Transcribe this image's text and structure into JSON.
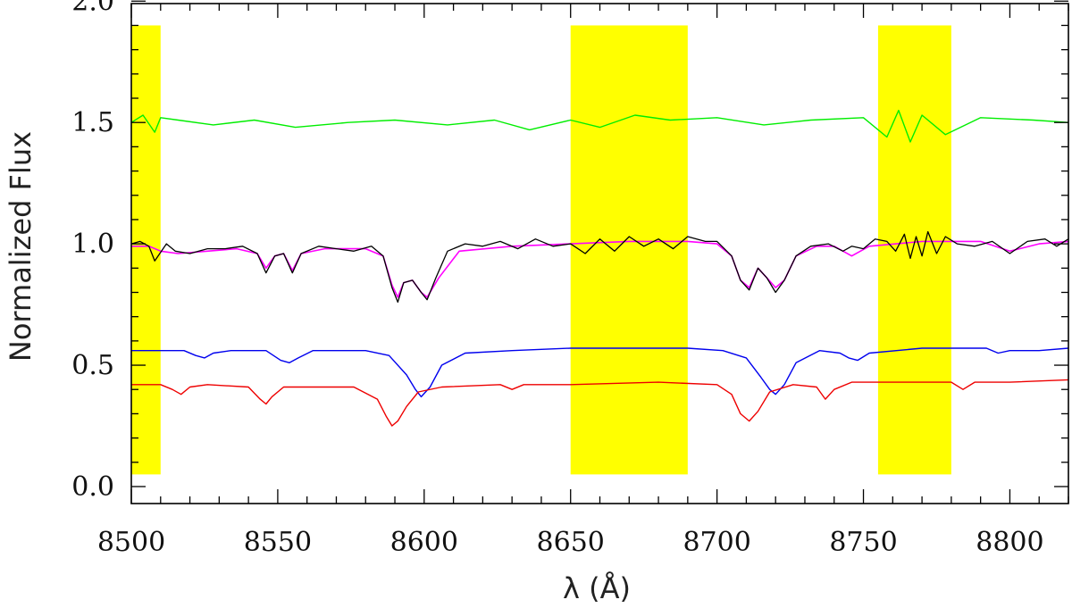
{
  "chart_data": {
    "type": "line",
    "title": "",
    "xlabel": "λ (Å)",
    "ylabel": "Normalized Flux",
    "xlim": [
      8500,
      8820
    ],
    "ylim": [
      -0.07,
      1.99
    ],
    "xticks": [
      8500,
      8550,
      8600,
      8650,
      8700,
      8750,
      8800
    ],
    "yticks": [
      0.0,
      0.5,
      1.0,
      1.5,
      2.0
    ],
    "ytick_labels": [
      "0.0",
      "0.5",
      "1.0",
      "1.5",
      "2.0"
    ],
    "grid": false,
    "legend": "none",
    "shaded_regions": [
      {
        "x0": 8500,
        "x1": 8510,
        "y0": 0.05,
        "y1": 1.9,
        "color": "#ffff00"
      },
      {
        "x0": 8650,
        "x1": 8690,
        "y0": 0.05,
        "y1": 1.9,
        "color": "#ffff00"
      },
      {
        "x0": 8755,
        "x1": 8780,
        "y0": 0.05,
        "y1": 1.9,
        "color": "#ffff00"
      }
    ],
    "series": [
      {
        "color": "#00ee00",
        "width": 1.4,
        "x": [
          8500,
          8504,
          8508,
          8510,
          8516,
          8528,
          8542,
          8556,
          8574,
          8590,
          8608,
          8624,
          8636,
          8650,
          8660,
          8672,
          8684,
          8700,
          8716,
          8732,
          8750,
          8758,
          8762,
          8766,
          8770,
          8778,
          8790,
          8808,
          8820
        ],
        "y": [
          1.5,
          1.53,
          1.46,
          1.52,
          1.51,
          1.49,
          1.51,
          1.48,
          1.5,
          1.51,
          1.49,
          1.51,
          1.47,
          1.51,
          1.48,
          1.53,
          1.51,
          1.52,
          1.49,
          1.51,
          1.52,
          1.44,
          1.55,
          1.42,
          1.53,
          1.45,
          1.52,
          1.51,
          1.5
        ]
      },
      {
        "color": "#ff00ff",
        "width": 1.6,
        "x": [
          8500,
          8506,
          8510,
          8516,
          8526,
          8536,
          8543,
          8546,
          8549,
          8552,
          8555,
          8558,
          8566,
          8580,
          8586,
          8589,
          8591,
          8593,
          8596,
          8599,
          8601,
          8605,
          8612,
          8630,
          8650,
          8670,
          8690,
          8700,
          8705,
          8708,
          8711,
          8714,
          8717,
          8720,
          8723,
          8727,
          8734,
          8740,
          8746,
          8752,
          8770,
          8790,
          8800,
          8810,
          8820
        ],
        "y": [
          0.99,
          0.99,
          0.97,
          0.96,
          0.97,
          0.98,
          0.96,
          0.9,
          0.95,
          0.96,
          0.89,
          0.96,
          0.98,
          0.98,
          0.95,
          0.83,
          0.78,
          0.84,
          0.85,
          0.8,
          0.78,
          0.86,
          0.97,
          0.99,
          1.0,
          1.01,
          1.01,
          1.0,
          0.95,
          0.85,
          0.82,
          0.9,
          0.86,
          0.82,
          0.85,
          0.95,
          0.99,
          0.99,
          0.95,
          0.99,
          1.01,
          1.01,
          0.97,
          1.0,
          1.01
        ]
      },
      {
        "color": "#000000",
        "width": 1.3,
        "x": [
          8500,
          8503,
          8506,
          8508,
          8512,
          8515,
          8520,
          8526,
          8532,
          8538,
          8543,
          8546,
          8549,
          8552,
          8555,
          8558,
          8564,
          8570,
          8576,
          8582,
          8586,
          8589,
          8591,
          8593,
          8596,
          8599,
          8601,
          8604,
          8608,
          8614,
          8620,
          8626,
          8632,
          8638,
          8644,
          8650,
          8655,
          8660,
          8665,
          8670,
          8675,
          8680,
          8685,
          8690,
          8696,
          8700,
          8705,
          8708,
          8711,
          8714,
          8717,
          8720,
          8723,
          8727,
          8732,
          8738,
          8743,
          8746,
          8750,
          8754,
          8758,
          8761,
          8764,
          8766,
          8768,
          8770,
          8772,
          8775,
          8778,
          8782,
          8788,
          8794,
          8800,
          8806,
          8812,
          8816,
          8820
        ],
        "y": [
          1.0,
          1.01,
          0.99,
          0.93,
          1.0,
          0.97,
          0.96,
          0.98,
          0.98,
          0.99,
          0.96,
          0.88,
          0.95,
          0.96,
          0.88,
          0.96,
          0.99,
          0.98,
          0.97,
          0.99,
          0.95,
          0.82,
          0.76,
          0.84,
          0.85,
          0.8,
          0.77,
          0.86,
          0.97,
          1.0,
          0.99,
          1.01,
          0.98,
          1.02,
          0.99,
          1.0,
          0.96,
          1.02,
          0.97,
          1.03,
          0.99,
          1.02,
          0.98,
          1.03,
          1.01,
          1.01,
          0.95,
          0.85,
          0.81,
          0.9,
          0.86,
          0.8,
          0.85,
          0.95,
          0.99,
          1.0,
          0.97,
          0.99,
          0.98,
          1.02,
          1.01,
          0.97,
          1.04,
          0.94,
          1.03,
          0.95,
          1.05,
          0.96,
          1.03,
          1.0,
          0.99,
          1.01,
          0.96,
          1.01,
          1.02,
          0.99,
          1.02
        ]
      },
      {
        "color": "#0000ee",
        "width": 1.4,
        "x": [
          8500,
          8518,
          8522,
          8525,
          8528,
          8534,
          8546,
          8551,
          8554,
          8557,
          8562,
          8580,
          8588,
          8594,
          8597,
          8599,
          8602,
          8606,
          8614,
          8630,
          8650,
          8672,
          8690,
          8702,
          8710,
          8715,
          8718,
          8720,
          8723,
          8727,
          8735,
          8742,
          8745,
          8748,
          8752,
          8770,
          8792,
          8796,
          8800,
          8810,
          8820
        ],
        "y": [
          0.56,
          0.56,
          0.54,
          0.53,
          0.55,
          0.56,
          0.56,
          0.52,
          0.51,
          0.53,
          0.56,
          0.56,
          0.54,
          0.46,
          0.4,
          0.37,
          0.41,
          0.5,
          0.55,
          0.56,
          0.57,
          0.57,
          0.57,
          0.56,
          0.53,
          0.45,
          0.4,
          0.38,
          0.42,
          0.51,
          0.56,
          0.55,
          0.53,
          0.52,
          0.55,
          0.57,
          0.57,
          0.55,
          0.56,
          0.56,
          0.57
        ]
      },
      {
        "color": "#ee0000",
        "width": 1.4,
        "x": [
          8500,
          8510,
          8514,
          8517,
          8520,
          8526,
          8540,
          8544,
          8546,
          8548,
          8552,
          8576,
          8584,
          8587,
          8589,
          8591,
          8594,
          8598,
          8606,
          8626,
          8630,
          8634,
          8650,
          8680,
          8700,
          8705,
          8708,
          8711,
          8714,
          8718,
          8726,
          8734,
          8737,
          8740,
          8746,
          8760,
          8780,
          8784,
          8788,
          8800,
          8820
        ],
        "y": [
          0.42,
          0.42,
          0.4,
          0.38,
          0.41,
          0.42,
          0.41,
          0.36,
          0.34,
          0.37,
          0.41,
          0.41,
          0.36,
          0.29,
          0.25,
          0.27,
          0.33,
          0.39,
          0.41,
          0.42,
          0.4,
          0.42,
          0.42,
          0.43,
          0.42,
          0.38,
          0.3,
          0.27,
          0.31,
          0.39,
          0.42,
          0.41,
          0.36,
          0.4,
          0.43,
          0.43,
          0.43,
          0.4,
          0.43,
          0.43,
          0.44
        ]
      }
    ]
  }
}
